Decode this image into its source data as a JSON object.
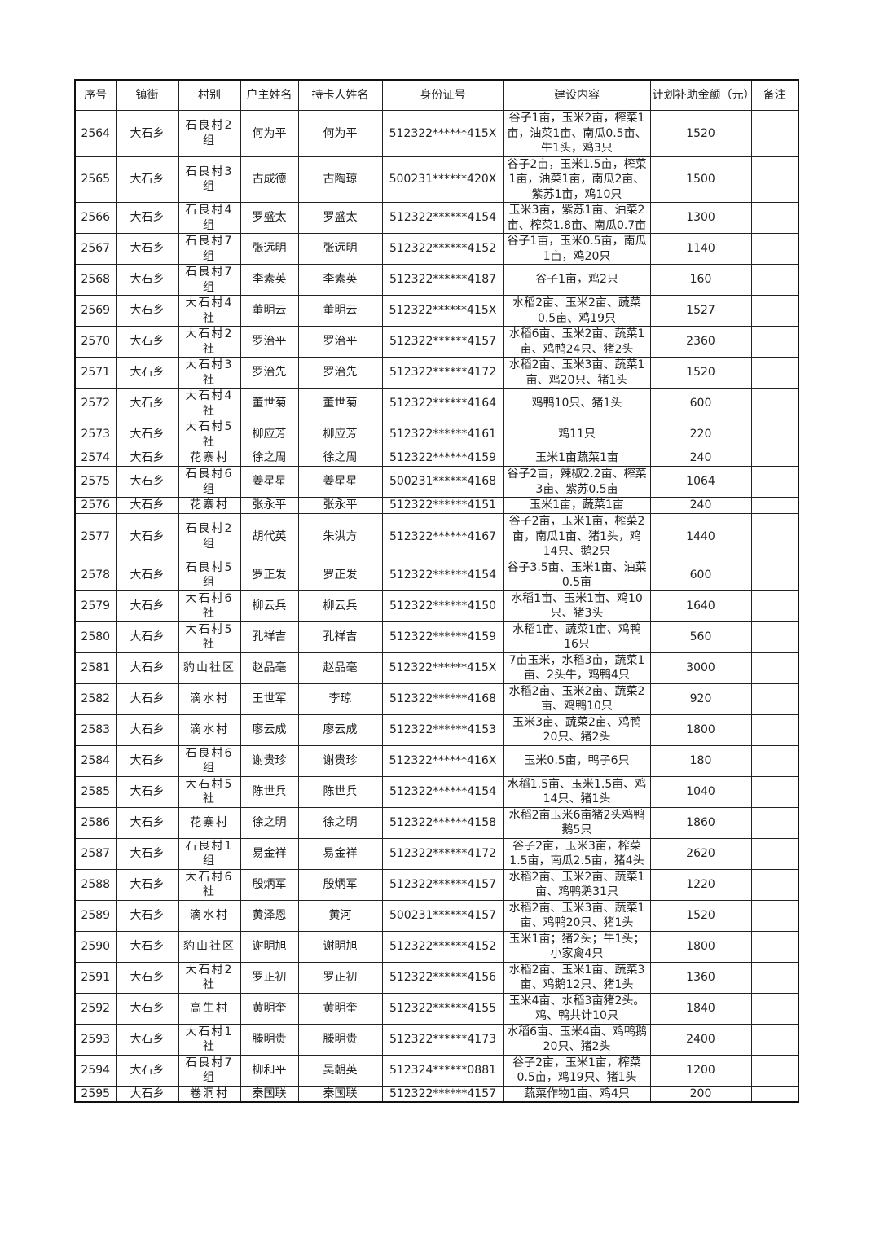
{
  "headers": [
    "序号",
    "镇街",
    "村别",
    "户主姓名",
    "持卡人姓名",
    "身份证号",
    "建设内容",
    "计划补助金额（元）",
    "备注"
  ],
  "rows": [
    [
      "2564",
      "大石乡",
      "石良村2组",
      "何为平",
      "何为平",
      "512322******415X",
      "谷子1亩，玉米2亩，榨菜1亩，油菜1亩、南瓜0.5亩、牛1头，鸡3只",
      "1520",
      ""
    ],
    [
      "2565",
      "大石乡",
      "石良村3组",
      "古成德",
      "古陶琼",
      "500231******420X",
      "谷子2亩，玉米1.5亩，榨菜1亩，油菜1亩，南瓜2亩、紫苏1亩，鸡10只",
      "1500",
      ""
    ],
    [
      "2566",
      "大石乡",
      "石良村4组",
      "罗盛太",
      "罗盛太",
      "512322******4154",
      "玉米3亩，紫苏1亩、油菜2亩、榨菜1.8亩、南瓜0.7亩",
      "1300",
      ""
    ],
    [
      "2567",
      "大石乡",
      "石良村7组",
      "张远明",
      "张远明",
      "512322******4152",
      "谷子1亩，玉米0.5亩，南瓜1亩，鸡20只",
      "1140",
      ""
    ],
    [
      "2568",
      "大石乡",
      "石良村7组",
      "李素英",
      "李素英",
      "512322******4187",
      "谷子1亩，鸡2只",
      "160",
      ""
    ],
    [
      "2569",
      "大石乡",
      "大石村4社",
      "董明云",
      "董明云",
      "512322******415X",
      "水稻2亩、玉米2亩、蔬菜0.5亩、鸡19只",
      "1527",
      ""
    ],
    [
      "2570",
      "大石乡",
      "大石村2社",
      "罗治平",
      "罗治平",
      "512322******4157",
      "水稻6亩、玉米2亩、蔬菜1亩、鸡鸭24只、猪2头",
      "2360",
      ""
    ],
    [
      "2571",
      "大石乡",
      "大石村3社",
      "罗治先",
      "罗治先",
      "512322******4172",
      "水稻2亩、玉米3亩、蔬菜1亩、鸡20只、猪1头",
      "1520",
      ""
    ],
    [
      "2572",
      "大石乡",
      "大石村4社",
      "董世菊",
      "董世菊",
      "512322******4164",
      "鸡鸭10只、猪1头",
      "600",
      ""
    ],
    [
      "2573",
      "大石乡",
      "大石村5社",
      "柳应芳",
      "柳应芳",
      "512322******4161",
      "鸡11只",
      "220",
      ""
    ],
    [
      "2574",
      "大石乡",
      "花寨村",
      "徐之周",
      "徐之周",
      "512322******4159",
      "玉米1亩蔬菜1亩",
      "240",
      ""
    ],
    [
      "2575",
      "大石乡",
      "石良村6组",
      "姜星星",
      "姜星星",
      "500231******4168",
      "谷子2亩，辣椒2.2亩、榨菜3亩、紫苏0.5亩",
      "1064",
      ""
    ],
    [
      "2576",
      "大石乡",
      "花寨村",
      "张永平",
      "张永平",
      "512322******4151",
      "玉米1亩，蔬菜1亩",
      "240",
      ""
    ],
    [
      "2577",
      "大石乡",
      "石良村2组",
      "胡代英",
      "朱洪方",
      "512322******4167",
      "谷子2亩，玉米1亩，榨菜2亩，南瓜1亩、猪1头，鸡14只、鹅2只",
      "1440",
      ""
    ],
    [
      "2578",
      "大石乡",
      "石良村5组",
      "罗正发",
      "罗正发",
      "512322******4154",
      "谷子3.5亩、玉米1亩、油菜0.5亩",
      "600",
      ""
    ],
    [
      "2579",
      "大石乡",
      "大石村6社",
      "柳云兵",
      "柳云兵",
      "512322******4150",
      "水稻1亩、玉米1亩、鸡10只、猪3头",
      "1640",
      ""
    ],
    [
      "2580",
      "大石乡",
      "大石村5社",
      "孔祥吉",
      "孔祥吉",
      "512322******4159",
      "水稻1亩、蔬菜1亩、鸡鸭16只",
      "560",
      ""
    ],
    [
      "2581",
      "大石乡",
      "豹山社区",
      "赵品毫",
      "赵品毫",
      "512322******415X",
      "7亩玉米，水稻3亩，蔬菜1亩、2头牛，鸡鸭4只",
      "3000",
      ""
    ],
    [
      "2582",
      "大石乡",
      "滴水村",
      "王世军",
      "李琼",
      "512322******4168",
      "水稻2亩、玉米2亩、蔬菜2亩、鸡鸭10只",
      "920",
      ""
    ],
    [
      "2583",
      "大石乡",
      "滴水村",
      "廖云成",
      "廖云成",
      "512322******4153",
      "玉米3亩、蔬菜2亩、鸡鸭20只、猪2头",
      "1800",
      ""
    ],
    [
      "2584",
      "大石乡",
      "石良村6组",
      "谢贵珍",
      "谢贵珍",
      "512322******416X",
      "玉米0.5亩，鸭子6只",
      "180",
      ""
    ],
    [
      "2585",
      "大石乡",
      "大石村5社",
      "陈世兵",
      "陈世兵",
      "512322******4154",
      "水稻1.5亩、玉米1.5亩、鸡14只、猪1头",
      "1040",
      ""
    ],
    [
      "2586",
      "大石乡",
      "花寨村",
      "徐之明",
      "徐之明",
      "512322******4158",
      "水稻2亩玉米6亩猪2头鸡鸭鹅5只",
      "1860",
      ""
    ],
    [
      "2587",
      "大石乡",
      "石良村1组",
      "易金祥",
      "易金祥",
      "512322******4172",
      "谷子2亩，玉米3亩，榨菜1.5亩，南瓜2.5亩，猪4头",
      "2620",
      ""
    ],
    [
      "2588",
      "大石乡",
      "大石村6社",
      "殷炳军",
      "殷炳军",
      "512322******4157",
      "水稻2亩、玉米2亩、蔬菜1亩、鸡鸭鹅31只",
      "1220",
      ""
    ],
    [
      "2589",
      "大石乡",
      "滴水村",
      "黄泽恩",
      "黄河",
      "500231******4157",
      "水稻2亩、玉米3亩、蔬菜1亩、鸡鸭20只、猪1头",
      "1520",
      ""
    ],
    [
      "2590",
      "大石乡",
      "豹山社区",
      "谢明旭",
      "谢明旭",
      "512322******4152",
      "玉米1亩；猪2头；牛1头；小家禽4只",
      "1800",
      ""
    ],
    [
      "2591",
      "大石乡",
      "大石村2社",
      "罗正初",
      "罗正初",
      "512322******4156",
      "水稻2亩、玉米1亩、蔬菜3亩、鸡鹅12只、猪1头",
      "1360",
      ""
    ],
    [
      "2592",
      "大石乡",
      "高生村",
      "黄明奎",
      "黄明奎",
      "512322******4155",
      "玉米4亩、水稻3亩猪2头。鸡、鸭共计10只",
      "1840",
      ""
    ],
    [
      "2593",
      "大石乡",
      "大石村1社",
      "滕明贵",
      "滕明贵",
      "512322******4173",
      "水稻6亩、玉米4亩、鸡鸭鹅20只、猪2头",
      "2400",
      ""
    ],
    [
      "2594",
      "大石乡",
      "石良村7组",
      "柳和平",
      "吴朝英",
      "512324******0881",
      "谷子2亩，玉米1亩，榨菜0.5亩，鸡19只、猪1头",
      "1200",
      ""
    ],
    [
      "2595",
      "大石乡",
      "卷洞村",
      "秦国联",
      "秦国联",
      "512322******4157",
      "蔬菜作物1亩、鸡4只",
      "200",
      ""
    ]
  ]
}
